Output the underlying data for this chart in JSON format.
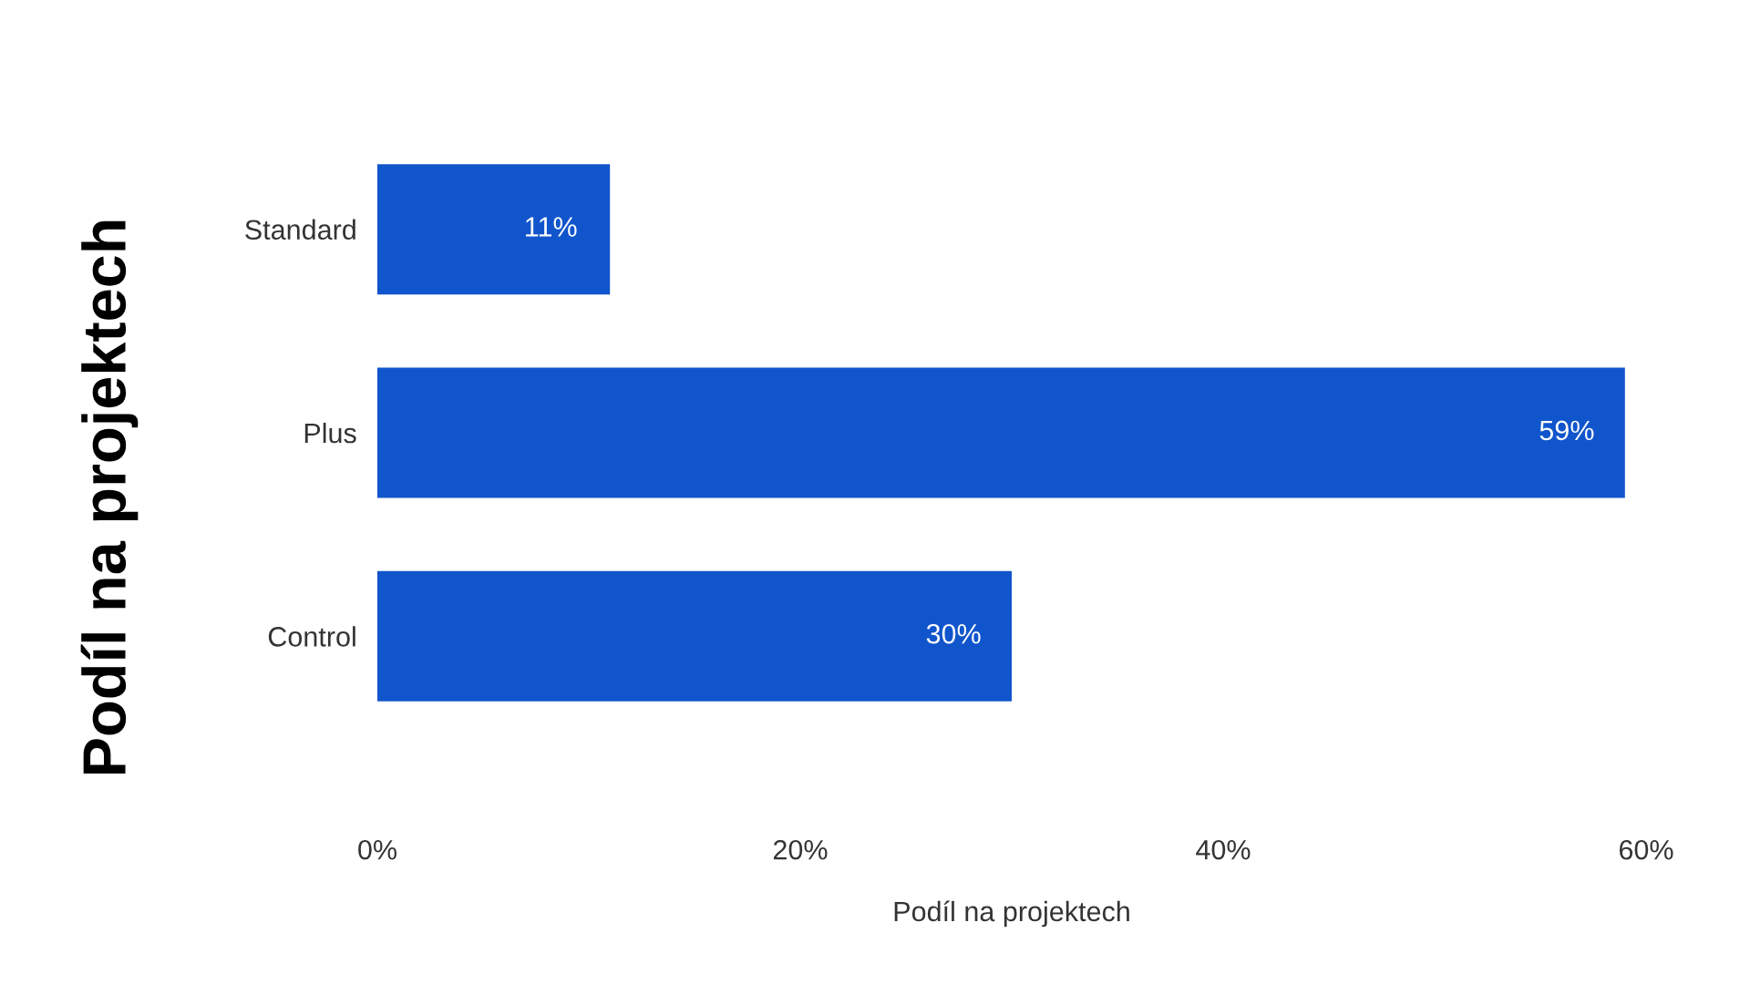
{
  "chart_data": {
    "type": "bar",
    "orientation": "horizontal",
    "categories": [
      "Standard",
      "Plus",
      "Control"
    ],
    "values": [
      11,
      59,
      30
    ],
    "value_labels": [
      "11%",
      "59%",
      "30%"
    ],
    "color": "#1155cc",
    "xlim": [
      0,
      60
    ],
    "xticks": [
      {
        "value": 0,
        "label": "0%"
      },
      {
        "value": 20,
        "label": "20%"
      },
      {
        "value": 40,
        "label": "40%"
      },
      {
        "value": 60,
        "label": "60%"
      }
    ],
    "xlabel": "Podíl na projektech",
    "ylabel": "Podíl na projektech",
    "grid": false,
    "legend": false
  }
}
